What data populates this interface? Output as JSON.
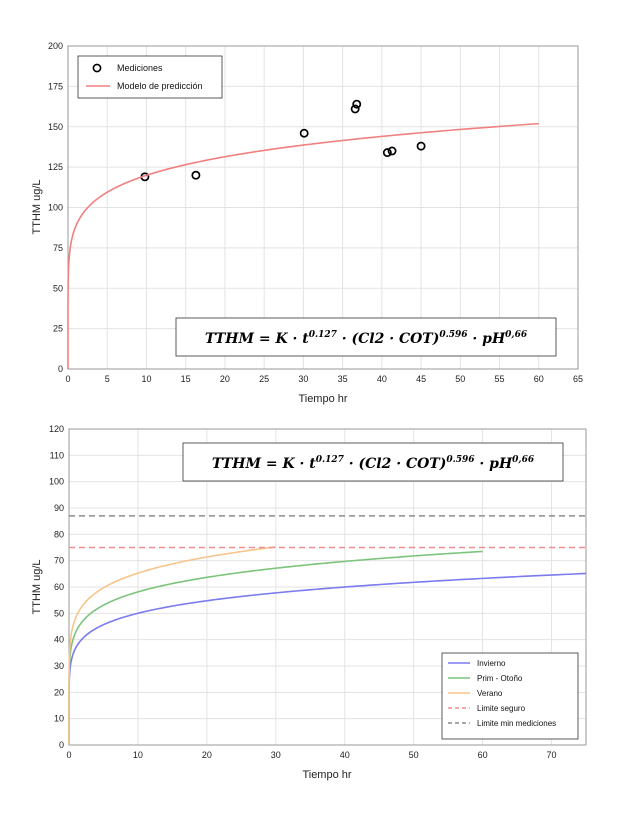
{
  "chart_data": [
    {
      "type": "scatter",
      "title": "",
      "xlabel": "Tiempo hr",
      "ylabel": "TTHM ug/L",
      "xlim": [
        0,
        65
      ],
      "ylim": [
        0,
        200
      ],
      "xticks": [
        0,
        5,
        10,
        15,
        20,
        25,
        30,
        35,
        40,
        45,
        50,
        55,
        60,
        65
      ],
      "yticks": [
        0,
        25,
        50,
        75,
        100,
        125,
        150,
        175,
        200
      ],
      "grid": true,
      "legend_position": "top-left",
      "formula": {
        "base": "TTHM = K · t",
        "exp1": "0.127",
        "mid": " · (Cl2 · COT)",
        "exp2": "0.596",
        "tail": " · pH",
        "exp3": "0,66"
      },
      "series": [
        {
          "name": "Mediciones",
          "kind": "points",
          "color": "#000000",
          "x": [
            9.8,
            16.3,
            30.1,
            36.6,
            36.8,
            40.7,
            41.3,
            45.0
          ],
          "y": [
            119,
            120,
            146,
            161,
            164,
            134,
            135,
            138
          ]
        },
        {
          "name": "Modelo de predicción",
          "kind": "curve",
          "color": "#f08080",
          "k": 88.5,
          "exponent": 0.132,
          "x_max": 60
        }
      ]
    },
    {
      "type": "line",
      "title": "",
      "xlabel": "Tiempo hr",
      "ylabel": "TTHM ug/L",
      "xlim": [
        0,
        75
      ],
      "ylim": [
        0,
        120
      ],
      "xticks": [
        0,
        10,
        20,
        30,
        40,
        50,
        60,
        70
      ],
      "yticks": [
        0,
        10,
        20,
        30,
        40,
        50,
        60,
        70,
        80,
        90,
        100,
        110,
        120
      ],
      "grid": true,
      "legend_position": "bottom-right",
      "formula": {
        "base": "TTHM = K · t",
        "exp1": "0.127",
        "mid": " · (Cl2 · COT)",
        "exp2": "0.596",
        "tail": " · pH",
        "exp3": "0,66"
      },
      "series": [
        {
          "name": "Invierno",
          "kind": "curve",
          "color": "#7b7bf0",
          "k": 37.0,
          "exponent": 0.131,
          "x_max": 75
        },
        {
          "name": "Prim - Otoño",
          "kind": "curve",
          "color": "#7cc47c",
          "k": 43.0,
          "exponent": 0.131,
          "x_max": 60
        },
        {
          "name": "Verano",
          "kind": "curve",
          "color": "#f7c48c",
          "k": 48.5,
          "exponent": 0.129,
          "x_max": 30
        },
        {
          "name": "Limite seguro",
          "kind": "hline",
          "color": "#f28e8e",
          "y": 75
        },
        {
          "name": "Limite min mediciones",
          "kind": "hline",
          "color": "#8c8c8c",
          "y": 87
        }
      ]
    }
  ]
}
